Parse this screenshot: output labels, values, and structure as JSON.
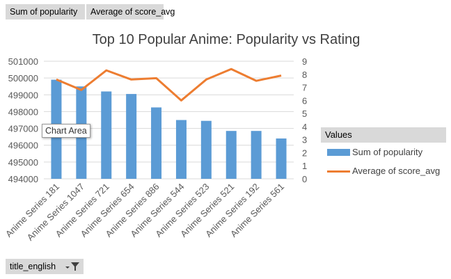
{
  "field_buttons": {
    "pop": "Sum of popularity",
    "score": "Average of score_avg",
    "filter": "title_english"
  },
  "tooltip": "Chart Area",
  "legend": {
    "title": "Values",
    "items": [
      "Sum of popularity",
      "Average of score_avg"
    ]
  },
  "colors": {
    "bar": "#5b9bd5",
    "line": "#ed7d31",
    "grid": "#d9d9d9",
    "axis_text": "#595959"
  },
  "icons": {
    "filter": "filter-dropdown-icon"
  },
  "chart_data": {
    "type": "bar",
    "title": "Top 10 Popular Anime: Popularity vs Rating",
    "categories": [
      "Anime Series 181",
      "Anime Series 1047",
      "Anime Series 721",
      "Anime Series 654",
      "Anime Series 886",
      "Anime Series 544",
      "Anime Series 523",
      "Anime Series 521",
      "Anime Series 192",
      "Anime Series 561"
    ],
    "series": [
      {
        "name": "Sum of popularity",
        "type": "bar",
        "axis": "left",
        "values": [
          499900,
          499500,
          499200,
          499050,
          498250,
          497500,
          497450,
          496850,
          496850,
          496400
        ]
      },
      {
        "name": "Average of score_avg",
        "type": "line",
        "axis": "right",
        "values": [
          7.6,
          6.8,
          8.3,
          7.6,
          7.7,
          6.0,
          7.6,
          8.4,
          7.5,
          7.9
        ]
      }
    ],
    "y_left": {
      "min": 494000,
      "max": 501000,
      "ticks": [
        "494000",
        "495000",
        "496000",
        "497000",
        "498000",
        "499000",
        "500000",
        "501000"
      ]
    },
    "y_right": {
      "min": 0,
      "max": 9,
      "ticks": [
        "0",
        "1",
        "2",
        "3",
        "4",
        "5",
        "6",
        "7",
        "8",
        "9"
      ]
    },
    "grid": true,
    "legend_position": "right"
  }
}
